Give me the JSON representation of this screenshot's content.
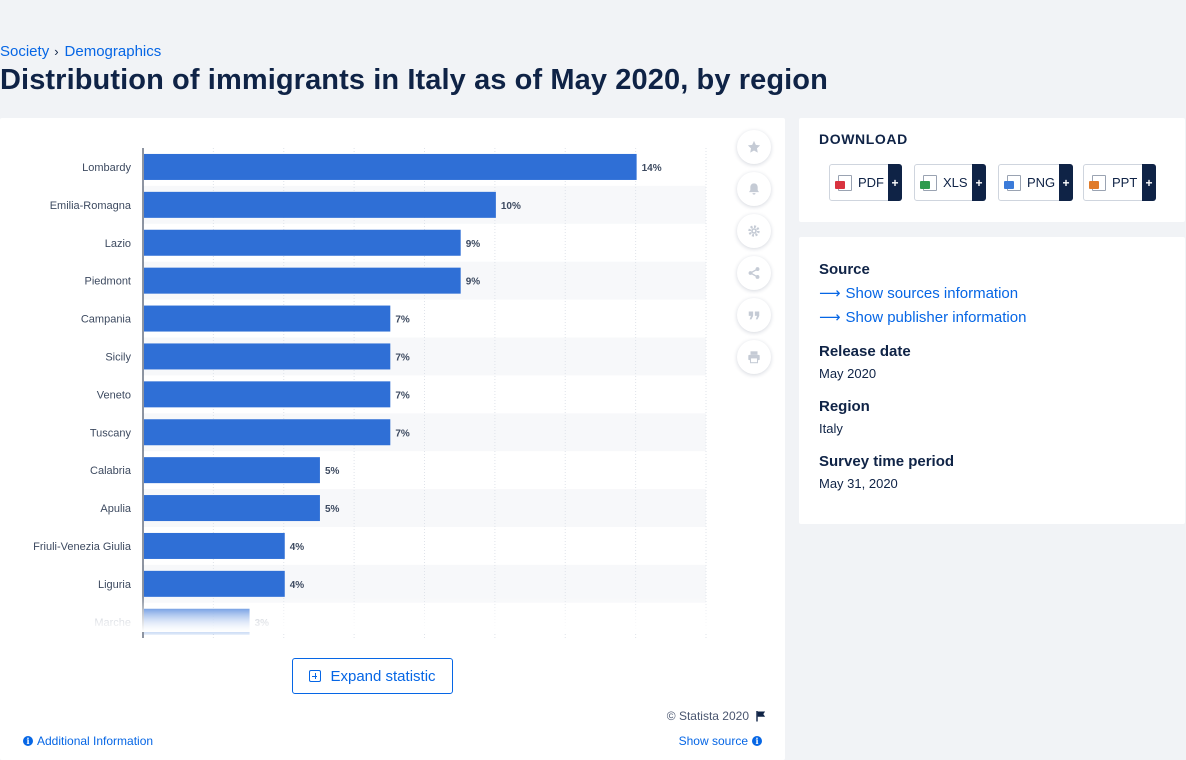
{
  "breadcrumb": {
    "parent": "Society",
    "child": "Demographics"
  },
  "page_title": "Distribution of immigrants in Italy as of May 2020, by region",
  "chart_data": {
    "type": "bar",
    "orientation": "horizontal",
    "title": "",
    "xlabel": "",
    "ylabel": "",
    "categories": [
      "Lombardy",
      "Emilia-Romagna",
      "Lazio",
      "Piedmont",
      "Campania",
      "Sicily",
      "Veneto",
      "Tuscany",
      "Calabria",
      "Apulia",
      "Friuli-Venezia Giulia",
      "Liguria",
      "Marche"
    ],
    "values": [
      14,
      10,
      9,
      9,
      7,
      7,
      7,
      7,
      5,
      5,
      4,
      4,
      3
    ],
    "value_labels": [
      "14%",
      "10%",
      "9%",
      "9%",
      "7%",
      "7%",
      "7%",
      "7%",
      "5%",
      "5%",
      "4%",
      "4%",
      "3%"
    ],
    "xlim": [
      0,
      16
    ],
    "unit": "%",
    "bar_color": "#2f6fd6",
    "grid": true
  },
  "chart_tools": [
    "star-icon",
    "bell-icon",
    "gear-icon",
    "share-icon",
    "quote-icon",
    "print-icon"
  ],
  "expand_label": "Expand statistic",
  "copyright": "© Statista 2020",
  "additional_info": "Additional Information",
  "show_source": "Show source",
  "download": {
    "title": "DOWNLOAD",
    "buttons": [
      {
        "label": "PDF",
        "plus": "+",
        "color": "#d9333f"
      },
      {
        "label": "XLS",
        "plus": "+",
        "color": "#2e9b4e"
      },
      {
        "label": "PNG",
        "plus": "+",
        "color": "#3b7bd9"
      },
      {
        "label": "PPT",
        "plus": "+",
        "color": "#e07b2a"
      }
    ]
  },
  "details": {
    "source_label": "Source",
    "show_sources": "Show sources information",
    "show_publisher": "Show publisher information",
    "release_date_label": "Release date",
    "release_date": "May 2020",
    "region_label": "Region",
    "region": "Italy",
    "survey_label": "Survey time period",
    "survey_period": "May 31, 2020"
  }
}
